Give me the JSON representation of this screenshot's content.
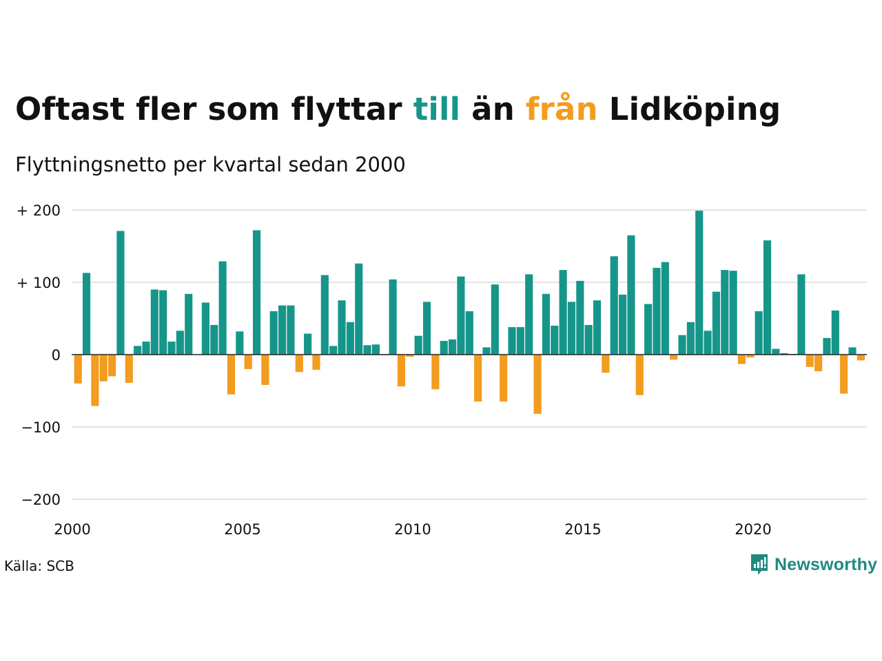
{
  "title": {
    "part1": "Oftast fler som flyttar ",
    "till": "till",
    "part2": " än ",
    "fran": "från",
    "part3": " Lidköping"
  },
  "subtitle": "Flyttningsnetto per kvartal sedan 2000",
  "source": "Källa: SCB",
  "brand": {
    "name": "Newsworthy",
    "icon": "newsworthy-logo-icon"
  },
  "colors": {
    "positive": "#16968a",
    "negative": "#f39c1f",
    "grid": "#e3e3e3",
    "zero": "#222222"
  },
  "chart_data": {
    "type": "bar",
    "title": "Oftast fler som flyttar till än från Lidköping",
    "subtitle": "Flyttningsnetto per kvartal sedan 2000",
    "xlabel": "",
    "ylabel": "",
    "ylim": [
      -200,
      200
    ],
    "yticks": [
      200,
      100,
      0,
      -100,
      -200
    ],
    "ytick_labels": [
      "+ 200",
      "+ 100",
      "0",
      "−100",
      "−200"
    ],
    "xticks": [
      2000,
      2005,
      2010,
      2015,
      2020
    ],
    "xtick_labels": [
      "2000",
      "2005",
      "2010",
      "2015",
      "2020"
    ],
    "grid": true,
    "start_year": 2000,
    "start_quarter": 1,
    "categories": [
      "2000 K1",
      "2000 K2",
      "2000 K3",
      "2000 K4",
      "2001 K1",
      "2001 K2",
      "2001 K3",
      "2001 K4",
      "2002 K1",
      "2002 K2",
      "2002 K3",
      "2002 K4",
      "2003 K1",
      "2003 K2",
      "2003 K3",
      "2003 K4",
      "2004 K1",
      "2004 K2",
      "2004 K3",
      "2004 K4",
      "2005 K1",
      "2005 K2",
      "2005 K3",
      "2005 K4",
      "2006 K1",
      "2006 K2",
      "2006 K3",
      "2006 K4",
      "2007 K1",
      "2007 K2",
      "2007 K3",
      "2007 K4",
      "2008 K1",
      "2008 K2",
      "2008 K3",
      "2008 K4",
      "2009 K1",
      "2009 K2",
      "2009 K3",
      "2009 K4",
      "2010 K1",
      "2010 K2",
      "2010 K3",
      "2010 K4",
      "2011 K1",
      "2011 K2",
      "2011 K3",
      "2011 K4",
      "2012 K1",
      "2012 K2",
      "2012 K3",
      "2012 K4",
      "2013 K1",
      "2013 K2",
      "2013 K3",
      "2013 K4",
      "2014 K1",
      "2014 K2",
      "2014 K3",
      "2014 K4",
      "2015 K1",
      "2015 K2",
      "2015 K3",
      "2015 K4",
      "2016 K1",
      "2016 K2",
      "2016 K3",
      "2016 K4",
      "2017 K1",
      "2017 K2",
      "2017 K3",
      "2017 K4",
      "2018 K1",
      "2018 K2",
      "2018 K3",
      "2018 K4",
      "2019 K1",
      "2019 K2",
      "2019 K3",
      "2019 K4",
      "2020 K1",
      "2020 K2",
      "2020 K3",
      "2020 K4",
      "2021 K1",
      "2021 K2",
      "2021 K3",
      "2021 K4",
      "2022 K1",
      "2022 K2",
      "2022 K3",
      "2022 K4",
      "2023 K1"
    ],
    "values": [
      -40,
      113,
      -71,
      -37,
      -30,
      171,
      -39,
      12,
      18,
      90,
      89,
      18,
      33,
      84,
      0,
      72,
      41,
      129,
      -55,
      32,
      -20,
      172,
      -42,
      60,
      68,
      68,
      -24,
      29,
      -21,
      110,
      12,
      75,
      45,
      126,
      13,
      14,
      -1,
      104,
      -44,
      -3,
      26,
      73,
      -48,
      19,
      21,
      108,
      60,
      -65,
      10,
      97,
      -65,
      38,
      38,
      111,
      -82,
      84,
      40,
      117,
      73,
      102,
      41,
      75,
      -25,
      136,
      83,
      165,
      -56,
      70,
      120,
      128,
      -7,
      27,
      45,
      199,
      33,
      87,
      117,
      116,
      -13,
      -4,
      60,
      158,
      8,
      2,
      1,
      111,
      -17,
      -23,
      23,
      61,
      -54,
      10,
      -8
    ]
  }
}
